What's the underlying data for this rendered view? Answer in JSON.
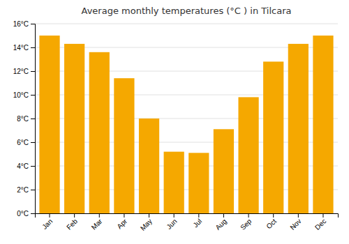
{
  "chart_data": {
    "type": "bar",
    "title": "Average monthly temperatures (°C ) in Tilcara",
    "categories": [
      "Jan",
      "Feb",
      "Mar",
      "Apr",
      "May",
      "Jun",
      "Jul",
      "Aug",
      "Sep",
      "Oct",
      "Nov",
      "Dec"
    ],
    "values": [
      15.0,
      14.3,
      13.6,
      11.4,
      8.0,
      5.2,
      5.1,
      7.1,
      9.8,
      12.8,
      14.3,
      15.0
    ],
    "color": "#F5A800",
    "ylim": [
      0,
      16
    ],
    "yticks": [
      {
        "value": 0,
        "label": "0°C"
      },
      {
        "value": 2,
        "label": "2°C"
      },
      {
        "value": 4,
        "label": "4°C"
      },
      {
        "value": 6,
        "label": "6°C"
      },
      {
        "value": 8,
        "label": "8°C"
      },
      {
        "value": 10,
        "label": "10°C"
      },
      {
        "value": 12,
        "label": "12°C"
      },
      {
        "value": 14,
        "label": "14°C"
      },
      {
        "value": 16,
        "label": "16°C"
      }
    ],
    "grid": true
  }
}
